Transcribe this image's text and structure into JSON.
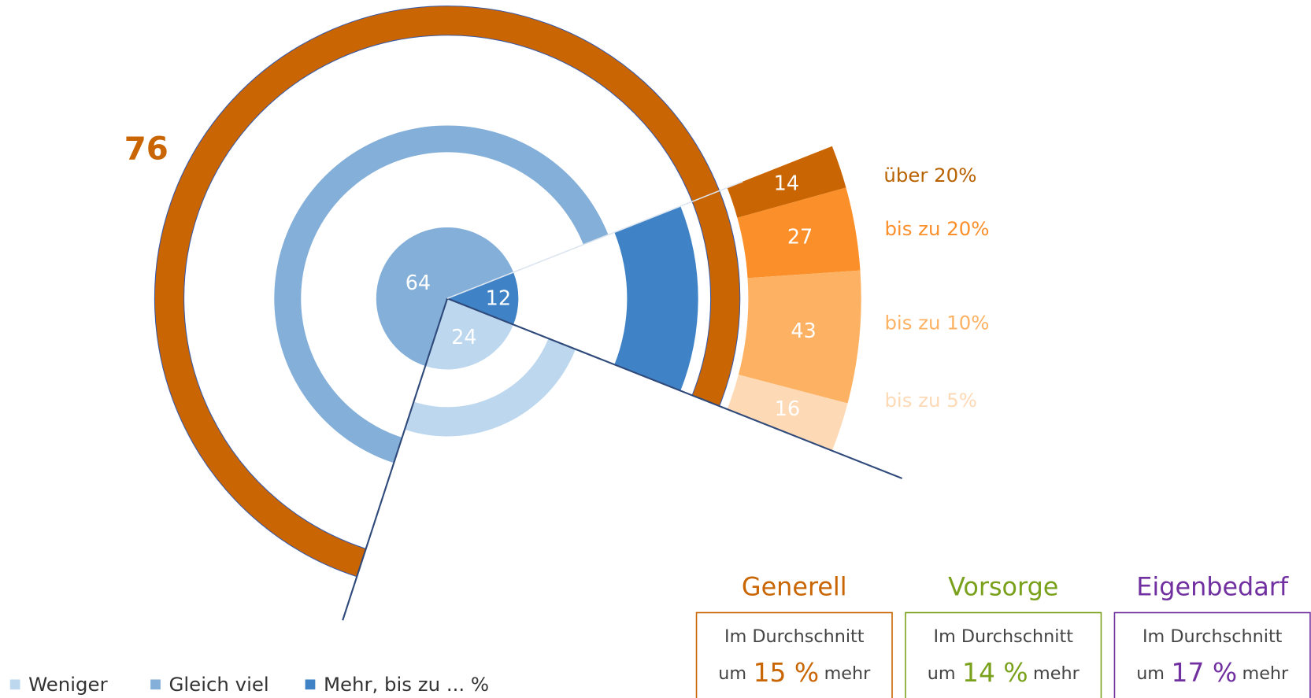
{
  "chart_data": {
    "type": "pie",
    "categories": [
      "Weniger",
      "Gleich viel",
      "Mehr, bis zu ... %"
    ],
    "values": [
      24,
      64,
      12
    ],
    "colors": [
      "#bdd7ee",
      "#84afd9",
      "#3f83c6"
    ],
    "total": 76,
    "total_color": "#c96502",
    "breakdown": {
      "categories": [
        "über 20%",
        "bis zu 20%",
        "bis zu 10%",
        "bis zu 5%"
      ],
      "values": [
        14,
        27,
        43,
        16
      ],
      "colors": [
        "#c96502",
        "#fb8f2a",
        "#fdb263",
        "#fdd9b5"
      ]
    },
    "boxes": [
      {
        "title": "Generell",
        "line1": "Im Durchschnitt",
        "prefix": "um",
        "value": 15,
        "value_label": "15 %",
        "suffix": "mehr",
        "color": "#c96502"
      },
      {
        "title": "Vorsorge",
        "line1": "Im Durchschnitt",
        "prefix": "um",
        "value": 14,
        "value_label": "14 %",
        "suffix": "mehr",
        "color": "#7aa11c"
      },
      {
        "title": "Eigenbedarf",
        "line1": "Im Durchschnitt",
        "prefix": "um",
        "value": 17,
        "value_label": "17 %",
        "suffix": "mehr",
        "color": "#7030a0"
      }
    ]
  }
}
